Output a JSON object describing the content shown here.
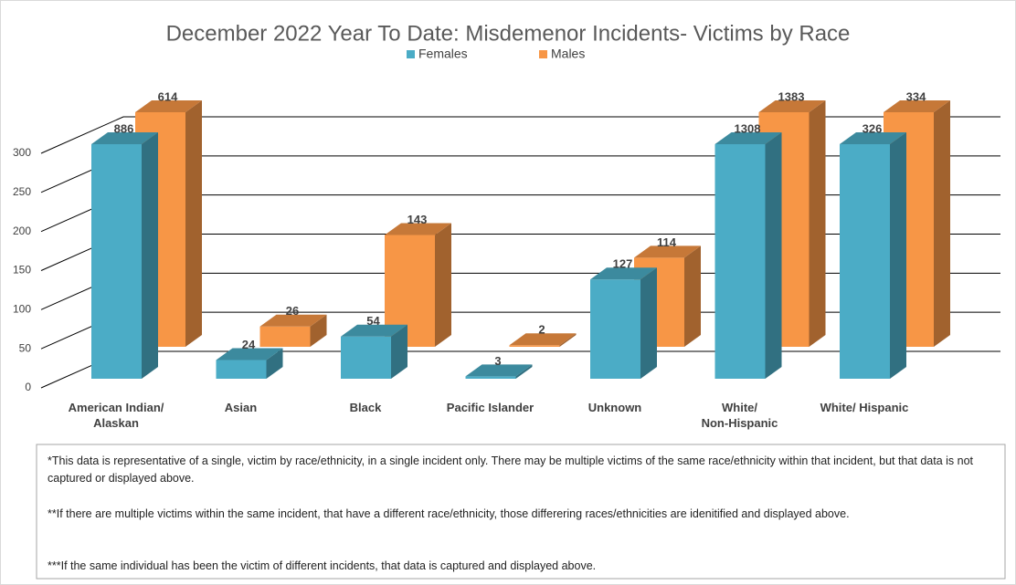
{
  "chart_data": {
    "type": "bar3d",
    "title": "December 2022 Year To Date: Misdemenor Incidents- Victims by Race",
    "categories": [
      "American Indian/\nAlaskan",
      "Asian",
      "Black",
      "Pacific Islander",
      "Unknown",
      "White/\nNon-Hispanic",
      "White/ Hispanic"
    ],
    "series": [
      {
        "name": "Females",
        "color": "#4bacc6",
        "values": [
          886,
          24,
          54,
          3,
          127,
          1308,
          326
        ]
      },
      {
        "name": "Males",
        "color": "#f79646",
        "values": [
          614,
          26,
          143,
          2,
          114,
          1383,
          334
        ]
      }
    ],
    "ylim": [
      0,
      300
    ],
    "yticks": [
      0,
      50,
      100,
      150,
      200,
      250,
      300
    ],
    "grid": true,
    "legend": "top"
  },
  "notes": [
    "*This data is representative of a single, victim by race/ethnicity, in a single incident only.  There may be multiple victims of the same race/ethnicity within that incident, but that data is not captured or displayed above.",
    "**If there are multiple victims within the same incident, that have a different race/ethnicity, those differering races/ethnicities are idenitified and displayed above.",
    "***If the same individual has been the victim of different incidents, that data is captured and displayed above."
  ]
}
